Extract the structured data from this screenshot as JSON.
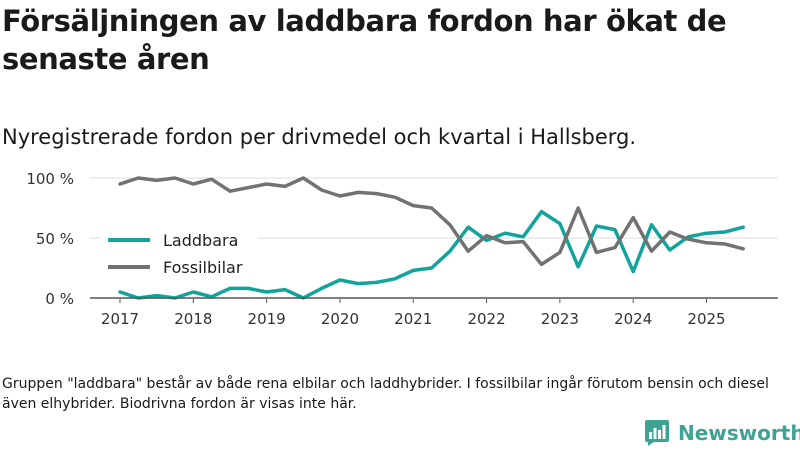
{
  "header": {
    "title": "Försäljningen av laddbara fordon har ökat de senaste åren",
    "subtitle": "Nyregistrerade fordon per drivmedel och kvartal i Hallsberg."
  },
  "footer": {
    "note": "Gruppen \"laddbara\" består av både rena elbilar och laddhybrider. I fossilbilar ingår förutom bensin och diesel även elhybrider. Biodrivna fordon är visas inte här.",
    "brand": "Newsworthy",
    "brand_color": "#3fa394"
  },
  "chart_data": {
    "type": "line",
    "title": "Nyregistrerade fordon per drivmedel och kvartal i Hallsberg.",
    "xlabel": "",
    "ylabel": "",
    "x_range": [
      2017,
      2025.75
    ],
    "ylim": [
      0,
      100
    ],
    "y_ticks": [
      0,
      50,
      100
    ],
    "y_tick_labels": [
      "0 %",
      "50 %",
      "100 %"
    ],
    "x_ticks": [
      2017,
      2018,
      2019,
      2020,
      2021,
      2022,
      2023,
      2024,
      2025
    ],
    "x_tick_labels": [
      "2017",
      "2018",
      "2019",
      "2020",
      "2021",
      "2022",
      "2023",
      "2024",
      "2025"
    ],
    "grid": true,
    "legend_position": "left-middle",
    "x": [
      2017.0,
      2017.25,
      2017.5,
      2017.75,
      2018.0,
      2018.25,
      2018.5,
      2018.75,
      2019.0,
      2019.25,
      2019.5,
      2019.75,
      2020.0,
      2020.25,
      2020.5,
      2020.75,
      2021.0,
      2021.25,
      2021.5,
      2021.75,
      2022.0,
      2022.25,
      2022.5,
      2022.75,
      2023.0,
      2023.25,
      2023.5,
      2023.75,
      2024.0,
      2024.25,
      2024.5,
      2024.75,
      2025.0,
      2025.25,
      2025.5
    ],
    "series": [
      {
        "name": "Laddbara",
        "color": "#12a39a",
        "values": [
          5,
          0,
          2,
          0,
          5,
          1,
          8,
          8,
          5,
          7,
          0,
          8,
          15,
          12,
          13,
          16,
          23,
          25,
          39,
          59,
          48,
          54,
          51,
          72,
          62,
          26,
          60,
          57,
          22,
          61,
          40,
          51,
          54,
          55,
          59
        ]
      },
      {
        "name": "Fossilbilar",
        "color": "#727272",
        "values": [
          95,
          100,
          98,
          100,
          95,
          99,
          89,
          92,
          95,
          93,
          100,
          90,
          85,
          88,
          87,
          84,
          77,
          75,
          61,
          39,
          52,
          46,
          47,
          28,
          38,
          75,
          38,
          42,
          67,
          39,
          55,
          49,
          46,
          45,
          41
        ]
      }
    ]
  }
}
